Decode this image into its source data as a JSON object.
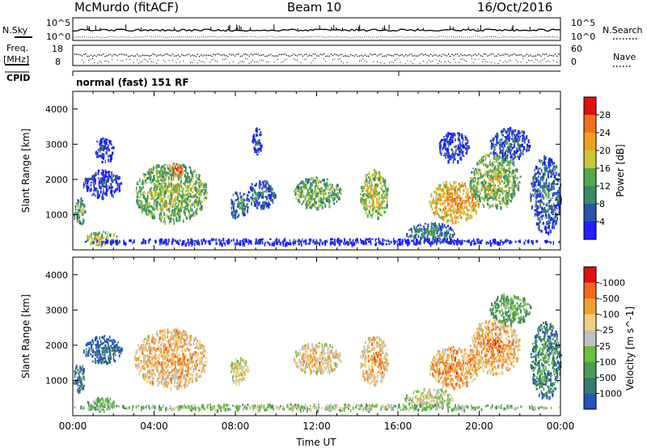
{
  "header": {
    "station": "McMurdo (fitACF)",
    "beam": "Beam 10",
    "date": "16/Oct/2016"
  },
  "top_panel": {
    "left_labels": [
      "N.Sky",
      "Freq.",
      "[MHz]",
      "CPID"
    ],
    "right_labels": [
      "N.Search",
      "Nave"
    ],
    "noise_ticks": [
      "10^5",
      "10^0"
    ],
    "freq_ticks": [
      "18",
      "8"
    ],
    "nave_ticks": [
      "60",
      "0"
    ],
    "cpid_text": "normal (fast) 151 RF"
  },
  "chart_data": [
    {
      "type": "heatmap",
      "name": "power",
      "ylabel": "Slant Range [km]",
      "xlim": [
        0,
        24
      ],
      "ylim": [
        0,
        4500
      ],
      "yticks": [
        "1000",
        "2000",
        "3000",
        "4000"
      ],
      "colorbar": {
        "label": "Power [dB]",
        "ticks": [
          "4",
          "8",
          "12",
          "16",
          "20",
          "24",
          "28"
        ],
        "colors": [
          "#1f1fff",
          "#2a52a8",
          "#3a8a6a",
          "#56a94a",
          "#c8c83c",
          "#f0a020",
          "#f07020",
          "#e01010"
        ]
      },
      "blobs": [
        {
          "x0": 0.0,
          "x1": 0.6,
          "y0": 700,
          "y1": 1500,
          "lvl": 0.45
        },
        {
          "x0": 0.5,
          "x1": 2.4,
          "y0": 1500,
          "y1": 2300,
          "lvl": 0.2
        },
        {
          "x0": 0.6,
          "x1": 2.2,
          "y0": 150,
          "y1": 550,
          "lvl": 0.6
        },
        {
          "x0": 1.0,
          "x1": 2.0,
          "y0": 2500,
          "y1": 3200,
          "lvl": 0.15
        },
        {
          "x0": 3.0,
          "x1": 6.6,
          "y0": 800,
          "y1": 2500,
          "lvl": 0.55
        },
        {
          "x0": 4.8,
          "x1": 5.4,
          "y0": 2100,
          "y1": 2500,
          "lvl": 0.85
        },
        {
          "x0": 7.7,
          "x1": 8.6,
          "y0": 900,
          "y1": 1700,
          "lvl": 0.35
        },
        {
          "x0": 8.5,
          "x1": 10.0,
          "y0": 1200,
          "y1": 2000,
          "lvl": 0.3
        },
        {
          "x0": 10.8,
          "x1": 13.2,
          "y0": 1200,
          "y1": 2100,
          "lvl": 0.5
        },
        {
          "x0": 8.8,
          "x1": 9.3,
          "y0": 2700,
          "y1": 3500,
          "lvl": 0.15
        },
        {
          "x0": 14.1,
          "x1": 15.5,
          "y0": 900,
          "y1": 2300,
          "lvl": 0.6
        },
        {
          "x0": 17.5,
          "x1": 20.0,
          "y0": 800,
          "y1": 2000,
          "lvl": 0.75
        },
        {
          "x0": 19.5,
          "x1": 22.0,
          "y0": 1200,
          "y1": 2800,
          "lvl": 0.55
        },
        {
          "x0": 20.5,
          "x1": 22.5,
          "y0": 2600,
          "y1": 3500,
          "lvl": 0.25
        },
        {
          "x0": 16.3,
          "x1": 18.8,
          "y0": 250,
          "y1": 800,
          "lvl": 0.35
        },
        {
          "x0": 18.0,
          "x1": 19.5,
          "y0": 2500,
          "y1": 3400,
          "lvl": 0.2
        },
        {
          "x0": 22.5,
          "x1": 24.0,
          "y0": 500,
          "y1": 2700,
          "lvl": 0.3
        },
        {
          "x0": 0.0,
          "x1": 24.0,
          "y0": 180,
          "y1": 350,
          "lvl": 0.1
        }
      ]
    },
    {
      "type": "heatmap",
      "name": "velocity",
      "ylabel": "Slant Range [km]",
      "xlabel": "Time UT",
      "xlim": [
        0,
        24
      ],
      "ylim": [
        0,
        4500
      ],
      "xticks": [
        "00:00",
        "04:00",
        "08:00",
        "12:00",
        "16:00",
        "20:00",
        "00:00"
      ],
      "yticks": [
        "1000",
        "2000",
        "3000",
        "4000"
      ],
      "colorbar": {
        "label": "Velocity [m s^-1]",
        "ticks": [
          "1000",
          "500",
          "100",
          "25",
          "-25",
          "-100",
          "-500",
          "-1000"
        ],
        "colors": [
          "#2255b8",
          "#3a7a6a",
          "#4a9a50",
          "#6ac040",
          "#c0c0c0",
          "#f0d080",
          "#f0a030",
          "#f06a20",
          "#e01010"
        ]
      },
      "blobs": [
        {
          "x0": 0.0,
          "x1": 0.6,
          "y0": 700,
          "y1": 1500,
          "lvl": 0.2
        },
        {
          "x0": 0.5,
          "x1": 2.4,
          "y0": 1500,
          "y1": 2300,
          "lvl": 0.15
        },
        {
          "x0": 0.6,
          "x1": 2.2,
          "y0": 150,
          "y1": 550,
          "lvl": 0.45
        },
        {
          "x0": 3.0,
          "x1": 6.6,
          "y0": 800,
          "y1": 2500,
          "lvl": 0.75
        },
        {
          "x0": 4.8,
          "x1": 5.4,
          "y0": 2100,
          "y1": 2500,
          "lvl": 0.8
        },
        {
          "x0": 7.7,
          "x1": 8.6,
          "y0": 900,
          "y1": 1700,
          "lvl": 0.65
        },
        {
          "x0": 10.8,
          "x1": 13.2,
          "y0": 1200,
          "y1": 2100,
          "lvl": 0.7
        },
        {
          "x0": 14.1,
          "x1": 15.5,
          "y0": 900,
          "y1": 2300,
          "lvl": 0.75
        },
        {
          "x0": 17.5,
          "x1": 20.0,
          "y0": 800,
          "y1": 2000,
          "lvl": 0.8
        },
        {
          "x0": 19.5,
          "x1": 22.0,
          "y0": 1200,
          "y1": 2800,
          "lvl": 0.78
        },
        {
          "x0": 20.5,
          "x1": 22.5,
          "y0": 2600,
          "y1": 3500,
          "lvl": 0.4
        },
        {
          "x0": 16.3,
          "x1": 18.8,
          "y0": 250,
          "y1": 800,
          "lvl": 0.6
        },
        {
          "x0": 22.5,
          "x1": 24.0,
          "y0": 500,
          "y1": 2700,
          "lvl": 0.3
        },
        {
          "x0": 0.0,
          "x1": 24.0,
          "y0": 180,
          "y1": 350,
          "lvl": 0.5
        }
      ]
    }
  ]
}
